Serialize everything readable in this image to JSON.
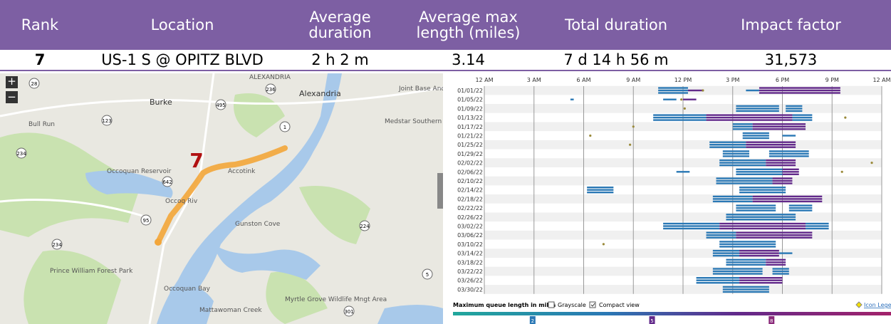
{
  "table": {
    "headers": [
      "Rank",
      "Location",
      "Average duration",
      "Average max length (miles)",
      "Total duration",
      "Impact factor"
    ],
    "row": [
      "7",
      "US-1 S @ OPITZ BLVD",
      "2 h 2 m",
      "3.14",
      "7 d 14 h 56 m",
      "31,573"
    ]
  },
  "map": {
    "zoom_in": "+",
    "zoom_out": "−",
    "marker_label": "7",
    "labels": [
      "ALEXANDRIA",
      "Alexandria",
      "Burke",
      "Bull Run",
      "Occoquan Reservoir",
      "Accotink",
      "Gunston Cove",
      "Occoquan Bay",
      "Prince William Forest Park",
      "Mattawoman Creek",
      "Myrtle Grove Wildlife Mngt Area",
      "Medstar Southern Maryland Hosp",
      "Occoq Riv",
      "Joint Base Andrew"
    ],
    "shields": [
      "28",
      "236",
      "123",
      "1",
      "234",
      "642",
      "95",
      "224",
      "234",
      "5",
      "301",
      "495"
    ]
  },
  "chart_data": {
    "type": "timeline",
    "xlim": [
      0,
      24
    ],
    "xticks": [
      {
        "value": 0,
        "label": "12 AM"
      },
      {
        "value": 3,
        "label": "3 AM"
      },
      {
        "value": 6,
        "label": "6 AM"
      },
      {
        "value": 9,
        "label": "9 AM"
      },
      {
        "value": 12,
        "label": "12 PM"
      },
      {
        "value": 15,
        "label": "3 PM"
      },
      {
        "value": 18,
        "label": "6 PM"
      },
      {
        "value": 21,
        "label": "9 PM"
      },
      {
        "value": 24,
        "label": "12 AM"
      }
    ],
    "grid": true,
    "colors": {
      "blue": "#2a78b5",
      "purple": "#62298a",
      "dot": "#9a8a3a"
    },
    "rows": [
      {
        "date": "01/01/22",
        "blue": [
          [
            10.5,
            12.3
          ],
          [
            15.8,
            16.6
          ]
        ],
        "purple": [
          [
            12.3,
            13.2
          ],
          [
            16.6,
            21.5
          ]
        ],
        "dots": [
          13.2
        ]
      },
      {
        "date": "01/05/22",
        "blue": [
          [
            5.2,
            5.4
          ],
          [
            10.8,
            11.6
          ]
        ],
        "purple": [
          [
            12.0,
            12.8
          ]
        ],
        "dots": [
          11.9
        ]
      },
      {
        "date": "01/09/22",
        "blue": [
          [
            15.2,
            17.8
          ],
          [
            18.2,
            19.2
          ]
        ],
        "purple": [],
        "dots": [
          12.1
        ]
      },
      {
        "date": "01/13/22",
        "blue": [
          [
            10.2,
            13.4
          ],
          [
            18.6,
            19.8
          ]
        ],
        "purple": [
          [
            13.4,
            18.6
          ]
        ],
        "dots": [
          21.8
        ]
      },
      {
        "date": "01/17/22",
        "blue": [
          [
            15.0,
            16.2
          ]
        ],
        "purple": [
          [
            16.2,
            19.4
          ]
        ],
        "dots": [
          9.0
        ]
      },
      {
        "date": "01/21/22",
        "blue": [
          [
            15.6,
            17.2
          ],
          [
            18.0,
            18.8
          ]
        ],
        "purple": [],
        "dots": [
          6.4
        ]
      },
      {
        "date": "01/25/22",
        "blue": [
          [
            13.6,
            15.8
          ]
        ],
        "purple": [
          [
            15.8,
            18.8
          ]
        ],
        "dots": [
          8.8
        ]
      },
      {
        "date": "01/29/22",
        "blue": [
          [
            14.4,
            16.0
          ],
          [
            17.2,
            19.6
          ]
        ],
        "purple": [],
        "dots": []
      },
      {
        "date": "02/02/22",
        "blue": [
          [
            14.2,
            17.0
          ]
        ],
        "purple": [
          [
            17.0,
            18.8
          ]
        ],
        "dots": [
          23.4
        ]
      },
      {
        "date": "02/06/22",
        "blue": [
          [
            11.6,
            12.4
          ],
          [
            15.2,
            18.0
          ]
        ],
        "purple": [
          [
            18.0,
            19.0
          ]
        ],
        "dots": [
          21.6
        ]
      },
      {
        "date": "02/10/22",
        "blue": [
          [
            14.0,
            17.4
          ]
        ],
        "purple": [
          [
            17.4,
            18.6
          ]
        ],
        "dots": []
      },
      {
        "date": "02/14/22",
        "blue": [
          [
            6.2,
            7.8
          ],
          [
            15.4,
            18.2
          ]
        ],
        "purple": [],
        "dots": []
      },
      {
        "date": "02/18/22",
        "blue": [
          [
            13.8,
            16.2
          ]
        ],
        "purple": [
          [
            16.2,
            20.4
          ]
        ],
        "dots": []
      },
      {
        "date": "02/22/22",
        "blue": [
          [
            15.2,
            17.6
          ],
          [
            18.4,
            19.8
          ]
        ],
        "purple": [],
        "dots": []
      },
      {
        "date": "02/26/22",
        "blue": [
          [
            14.6,
            18.8
          ]
        ],
        "purple": [],
        "dots": []
      },
      {
        "date": "03/02/22",
        "blue": [
          [
            10.8,
            14.2
          ],
          [
            19.4,
            20.8
          ]
        ],
        "purple": [
          [
            14.2,
            19.4
          ]
        ],
        "dots": []
      },
      {
        "date": "03/06/22",
        "blue": [
          [
            13.4,
            15.2
          ]
        ],
        "purple": [
          [
            15.2,
            19.8
          ]
        ],
        "dots": []
      },
      {
        "date": "03/10/22",
        "blue": [
          [
            14.2,
            17.6
          ]
        ],
        "purple": [],
        "dots": [
          7.2
        ]
      },
      {
        "date": "03/14/22",
        "blue": [
          [
            13.8,
            15.4
          ],
          [
            17.8,
            18.6
          ]
        ],
        "purple": [
          [
            15.4,
            17.8
          ]
        ],
        "dots": []
      },
      {
        "date": "03/18/22",
        "blue": [
          [
            14.6,
            17.0
          ]
        ],
        "purple": [
          [
            17.0,
            18.2
          ]
        ],
        "dots": []
      },
      {
        "date": "03/22/22",
        "blue": [
          [
            13.8,
            16.8
          ],
          [
            17.4,
            18.4
          ]
        ],
        "purple": [],
        "dots": []
      },
      {
        "date": "03/26/22",
        "blue": [
          [
            12.8,
            15.4
          ]
        ],
        "purple": [
          [
            15.4,
            18.0
          ]
        ],
        "dots": []
      },
      {
        "date": "03/30/22",
        "blue": [
          [
            14.4,
            17.2
          ]
        ],
        "purple": [],
        "dots": []
      }
    ],
    "legend": {
      "title": "Maximum queue length in miles",
      "grayscale": "Grayscale",
      "compact": "Compact view",
      "icon_legend": "Icon Legend",
      "lim": [
        0,
        11
      ],
      "ticks": [
        2,
        5,
        8
      ]
    }
  }
}
